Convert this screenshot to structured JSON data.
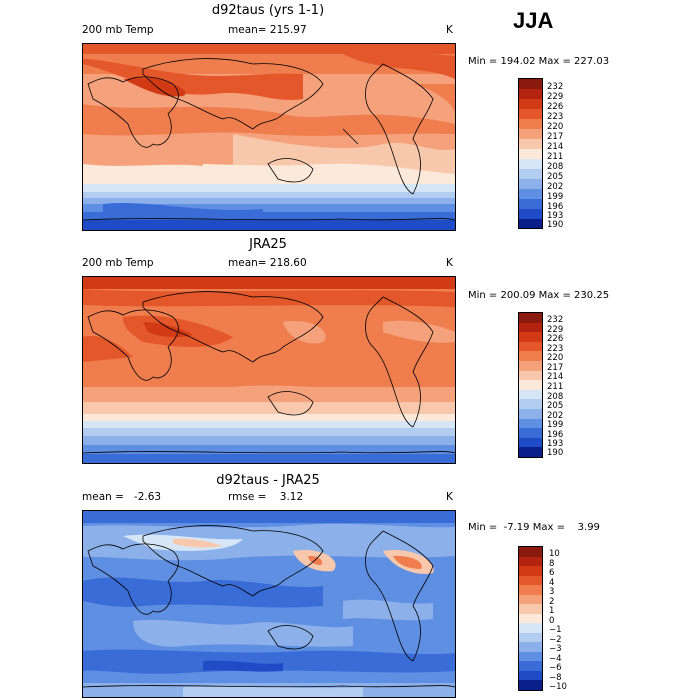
{
  "season": "JJA",
  "panels": [
    {
      "title": "d92taus (yrs 1-1)",
      "left_label": "200 mb Temp",
      "center_label": "mean= 215.97",
      "units": "K",
      "minmax": "Min = 194.02 Max = 227.03",
      "legend": [
        "232",
        "229",
        "226",
        "223",
        "220",
        "217",
        "214",
        "211",
        "208",
        "205",
        "202",
        "199",
        "196",
        "193",
        "190"
      ],
      "colors": [
        "#8b1a0e",
        "#b3230f",
        "#d13a14",
        "#e4572a",
        "#ef7d4d",
        "#f5a27c",
        "#f8c8ac",
        "#fde9d9",
        "#d6e6f6",
        "#b3cdf0",
        "#8cb0ea",
        "#5f8fe2",
        "#3a6cd8",
        "#1f4bc6",
        "#0a1f8a"
      ]
    },
    {
      "title": "JRA25",
      "left_label": "200 mb Temp",
      "center_label": "mean= 218.60",
      "units": "K",
      "minmax": "Min = 200.09 Max = 230.25",
      "legend": [
        "232",
        "229",
        "226",
        "223",
        "220",
        "217",
        "214",
        "211",
        "208",
        "205",
        "202",
        "199",
        "196",
        "193",
        "190"
      ],
      "colors": [
        "#8b1a0e",
        "#b3230f",
        "#d13a14",
        "#e4572a",
        "#ef7d4d",
        "#f5a27c",
        "#f8c8ac",
        "#fde9d9",
        "#d6e6f6",
        "#b3cdf0",
        "#8cb0ea",
        "#5f8fe2",
        "#3a6cd8",
        "#1f4bc6",
        "#0a1f8a"
      ]
    },
    {
      "title": "d92taus - JRA25",
      "left_label": "mean =   -2.63",
      "center_label": "rmse =    3.12",
      "units": "K",
      "minmax": "Min =  -7.19 Max =    3.99",
      "legend": [
        "10",
        "8",
        "6",
        "4",
        "3",
        "2",
        "1",
        "0",
        "−1",
        "−2",
        "−3",
        "−4",
        "−6",
        "−8",
        "−10"
      ],
      "colors": [
        "#8b1a0e",
        "#b3230f",
        "#d13a14",
        "#e4572a",
        "#ef7d4d",
        "#f5a27c",
        "#f8c8ac",
        "#fde9d9",
        "#d6e6f6",
        "#b3cdf0",
        "#8cb0ea",
        "#5f8fe2",
        "#3a6cd8",
        "#1f4bc6",
        "#0a1f8a"
      ]
    }
  ]
}
